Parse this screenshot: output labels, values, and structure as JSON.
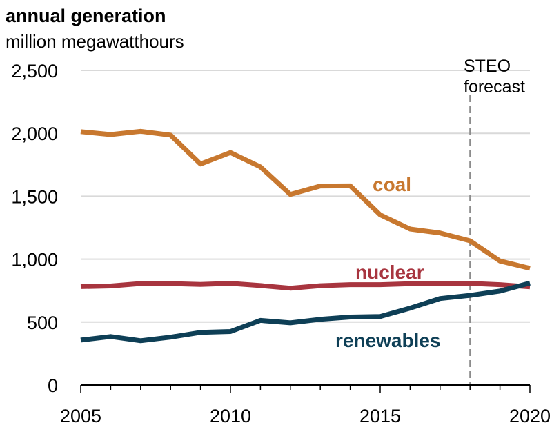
{
  "chart_data": {
    "type": "line",
    "title": "annual generation",
    "subtitle": "million megawatthours",
    "x": [
      2005,
      2006,
      2007,
      2008,
      2009,
      2010,
      2011,
      2012,
      2013,
      2014,
      2015,
      2016,
      2017,
      2018,
      2019,
      2020
    ],
    "xlim": [
      2005,
      2020
    ],
    "ylim": [
      0,
      2500
    ],
    "yticks": [
      0,
      500,
      1000,
      1500,
      2000,
      2500
    ],
    "ytick_labels": [
      "0",
      "500",
      "1,000",
      "1,500",
      "2,000",
      "2,500"
    ],
    "xticks": [
      2005,
      2010,
      2015,
      2020
    ],
    "xtick_labels": [
      "2005",
      "2010",
      "2015",
      "2020"
    ],
    "grid": true,
    "series": [
      {
        "name": "coal",
        "color": "#c8782f",
        "values": [
          2013,
          1990,
          2016,
          1986,
          1756,
          1847,
          1733,
          1514,
          1581,
          1582,
          1352,
          1239,
          1208,
          1146,
          985,
          927
        ]
      },
      {
        "name": "nuclear",
        "color": "#a8353f",
        "values": [
          782,
          787,
          806,
          806,
          799,
          807,
          790,
          769,
          789,
          797,
          797,
          805,
          805,
          807,
          797,
          780
        ]
      },
      {
        "name": "renewables",
        "color": "#0e3f56",
        "values": [
          357,
          385,
          352,
          380,
          418,
          425,
          513,
          494,
          522,
          540,
          544,
          611,
          687,
          712,
          746,
          810
        ]
      }
    ],
    "annotation": {
      "x": 2018,
      "lines": [
        "STEO",
        "forecast"
      ],
      "color": "#8c8c8c"
    }
  }
}
